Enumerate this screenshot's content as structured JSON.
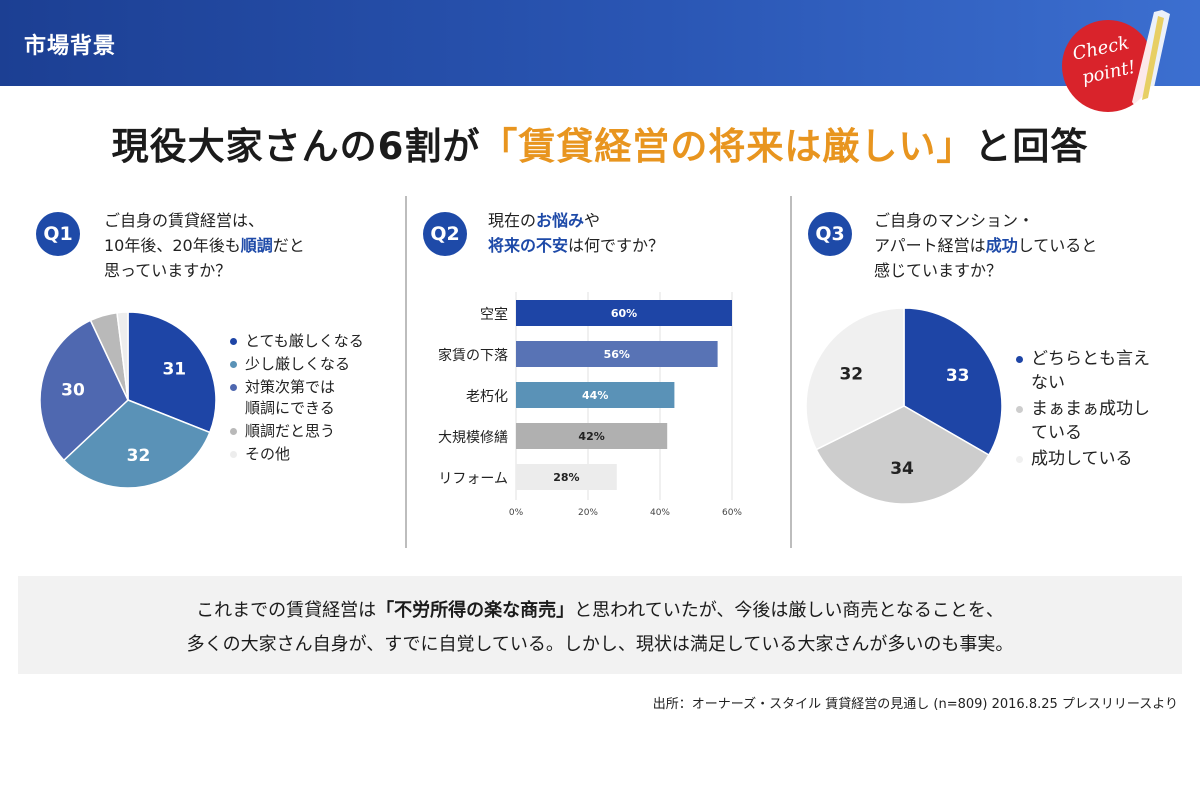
{
  "header": {
    "title": "市場背景",
    "badge_line1": "Check",
    "badge_line2": "point!"
  },
  "headline": {
    "prefix": "現役大家さんの6割が",
    "highlight": "「賃貸経営の将来は厳しい」",
    "suffix": "と回答"
  },
  "q1": {
    "label": "Q1",
    "question_line1": "ご自身の賃貸経営は、",
    "question_line2_pre": "10年後、20年後も",
    "question_line2_em": "順調",
    "question_line2_post": "だと",
    "question_line3": "思っていますか？"
  },
  "q2": {
    "label": "Q2",
    "question_line1_pre": "現在の",
    "question_line1_em": "お悩み",
    "question_line1_post": "や",
    "question_line2_em": "将来の不安",
    "question_line2_post": "は何ですか？"
  },
  "q3": {
    "label": "Q3",
    "question_line1": "ご自身のマンション・",
    "question_line2_pre": "アパート経営は",
    "question_line2_em": "成功",
    "question_line2_post": "していると",
    "question_line3": "感じていますか？"
  },
  "chart_data": [
    {
      "type": "pie",
      "categories": [
        "とても厳しくなる",
        "少し厳しくなる",
        "対策次第では順調にできる",
        "順調だと思う",
        "その他"
      ],
      "values": [
        31,
        32,
        30,
        5,
        2
      ],
      "value_labels": [
        "31",
        "32",
        "30",
        "",
        ""
      ],
      "legend": [
        "とても厳しくなる",
        "少し厳しくなる",
        "対策次第では",
        "順調にできる",
        "順調だと思う",
        "その他"
      ],
      "legend_placement": "right",
      "colors": [
        "#1e45a6",
        "#5a92b7",
        "#4f68b0",
        "#b9b9b9",
        "#ededed"
      ]
    },
    {
      "type": "bar",
      "orientation": "horizontal",
      "categories": [
        "空室",
        "家賃の下落",
        "老朽化",
        "大規模修繕",
        "リフォーム"
      ],
      "values": [
        60,
        56,
        44,
        42,
        28
      ],
      "value_labels": [
        "60%",
        "56%",
        "44%",
        "42%",
        "28%"
      ],
      "xlim": [
        0,
        60
      ],
      "xticks": [
        "0%",
        "20%",
        "40%",
        "60%"
      ],
      "grid": true,
      "colors": [
        "#1e45a6",
        "#5873b5",
        "#5a92b7",
        "#b0b0b0",
        "#ececec"
      ]
    },
    {
      "type": "pie",
      "categories": [
        "どちらとも言えない",
        "まぁまぁ成功している",
        "成功している"
      ],
      "values": [
        33,
        34,
        32
      ],
      "value_labels": [
        "33",
        "34",
        "32"
      ],
      "legend": [
        "どちらとも言え",
        "ない",
        "まぁまぁ成功し",
        "ている",
        "成功している"
      ],
      "legend_placement": "right",
      "colors": [
        "#1e45a6",
        "#cdcdcd",
        "#f0f0f0"
      ]
    }
  ],
  "summary": {
    "line1_pre": "これまでの賃貸経営は",
    "line1_strong": "「不労所得の楽な商売」",
    "line1_post": "と思われていたが、今後は厳しい商売となることを、",
    "line2": "多くの大家さん自身が、すでに自覚している。しかし、現状は満足している大家さんが多いのも事実。"
  },
  "source": "出所：オーナーズ・スタイル 賃貸経営の見通し (n=809) 2016.8.25 プレスリリースより"
}
